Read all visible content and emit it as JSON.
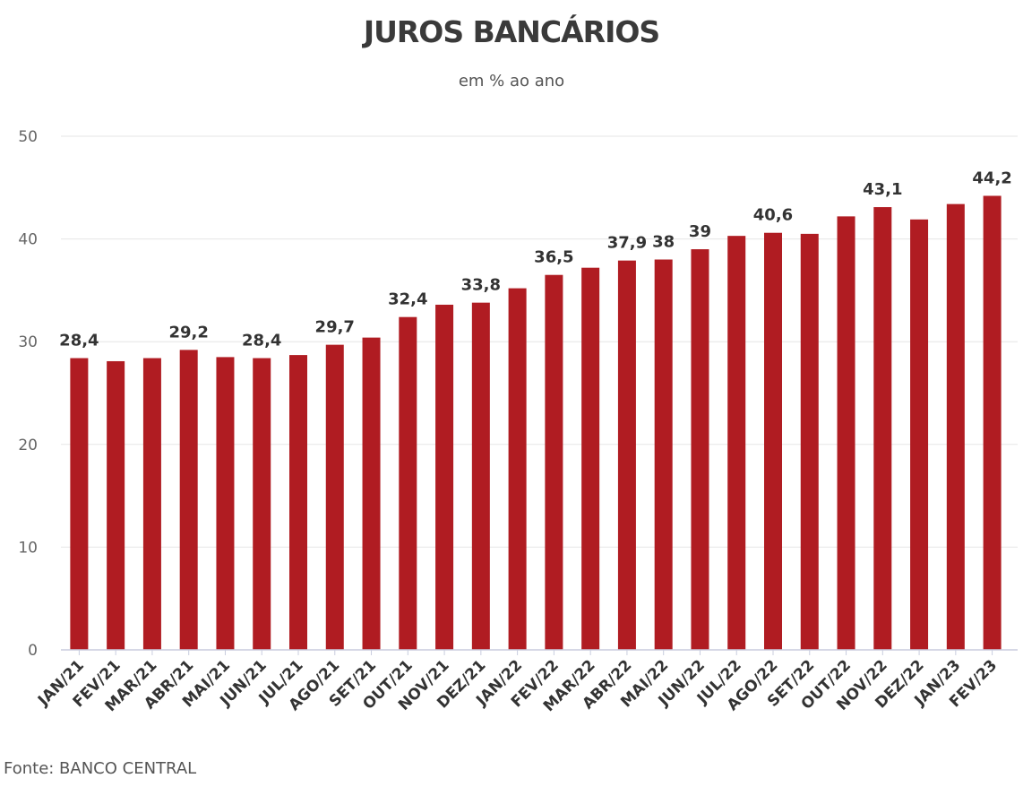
{
  "title": "JUROS BANCÁRIOS",
  "subtitle": "em % ao ano",
  "source": "Fonte: BANCO CENTRAL",
  "colors": {
    "bar": "#b01c22",
    "grid": "#e6e6e6",
    "axis": "#c8ccde"
  },
  "chart_data": {
    "type": "bar",
    "title": "JUROS BANCÁRIOS",
    "subtitle": "em % ao ano",
    "categories": [
      "JAN/21",
      "FEV/21",
      "MAR/21",
      "ABR/21",
      "MAI/21",
      "JUN/21",
      "JUL/21",
      "AGO/21",
      "SET/21",
      "OUT/21",
      "NOV/21",
      "DEZ/21",
      "JAN/22",
      "FEV/22",
      "MAR/22",
      "ABR/22",
      "MAI/22",
      "JUN/22",
      "JUL/22",
      "AGO/22",
      "SET/22",
      "OUT/22",
      "NOV/22",
      "DEZ/22",
      "JAN/23",
      "FEV/23"
    ],
    "values": [
      28.4,
      28.1,
      28.4,
      29.2,
      28.5,
      28.4,
      28.7,
      29.7,
      30.4,
      32.4,
      33.6,
      33.8,
      35.2,
      36.5,
      37.2,
      37.9,
      38,
      39,
      40.3,
      40.6,
      40.5,
      42.2,
      43.1,
      41.9,
      43.4,
      44.2
    ],
    "data_labels": [
      "28,4",
      "",
      "",
      "29,2",
      "",
      "28,4",
      "",
      "29,7",
      "",
      "32,4",
      "",
      "33,8",
      "",
      "36,5",
      "",
      "37,9",
      "38",
      "39",
      "",
      "40,6",
      "",
      "",
      "43,1",
      "",
      "",
      "44,2"
    ],
    "yticks": [
      "0",
      "10",
      "20",
      "30",
      "40",
      "50"
    ],
    "ylim": [
      0,
      50
    ],
    "grid": true,
    "legend": "none",
    "xlabel": "",
    "ylabel": ""
  }
}
